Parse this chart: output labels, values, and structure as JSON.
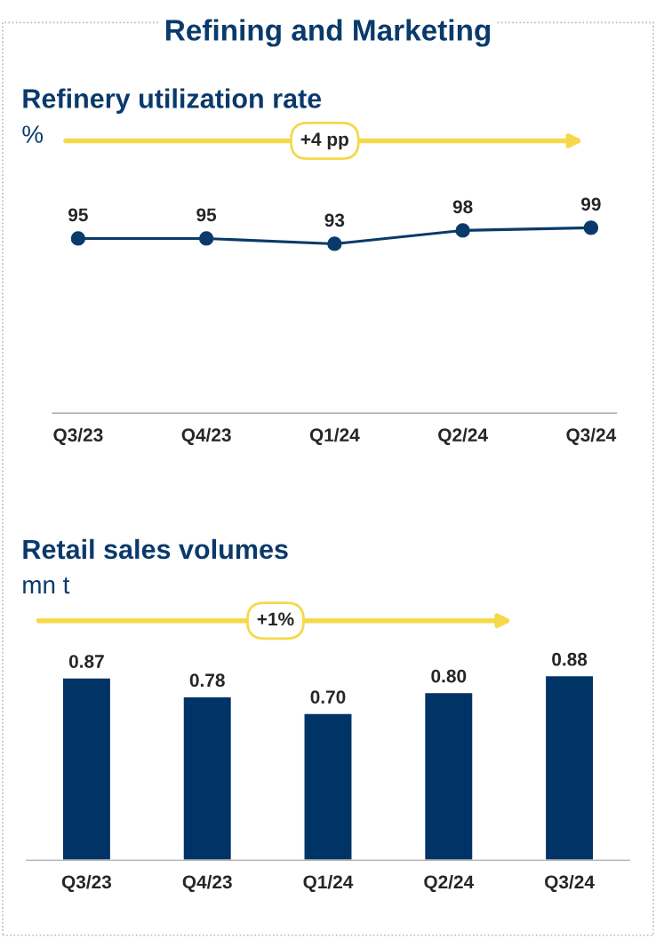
{
  "chart_data": [
    {
      "type": "line",
      "title": "Refinery utilization rate",
      "ylabel": "%",
      "categories": [
        "Q3/23",
        "Q4/23",
        "Q1/24",
        "Q2/24",
        "Q3/24"
      ],
      "series": [
        {
          "color": "#0a3a6b",
          "values": [
            95,
            95,
            93,
            98,
            99
          ]
        }
      ],
      "marker": "circle",
      "data_labels": true,
      "grid": false,
      "annotations": [
        "Refining and Marketing",
        "+4 pp"
      ]
    },
    {
      "type": "bar",
      "title": "Retail sales volumes",
      "ylabel": "mn t",
      "categories": [
        "Q3/23",
        "Q4/23",
        "Q1/24",
        "Q2/24",
        "Q3/24"
      ],
      "series": [
        {
          "color": "#003366",
          "values": [
            0.87,
            0.78,
            0.7,
            0.8,
            0.88
          ],
          "value_labels": [
            "0.87",
            "0.78",
            "0.70",
            "0.80",
            "0.88"
          ]
        }
      ],
      "grid": false,
      "annotations": [
        "+1%"
      ]
    }
  ]
}
